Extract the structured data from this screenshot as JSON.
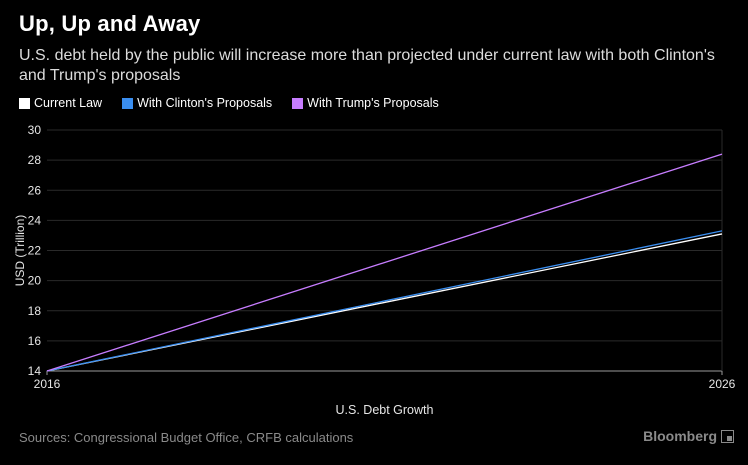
{
  "chart_data": {
    "type": "line",
    "title": "Up, Up and Away",
    "subtitle": "U.S. debt held by the public will increase more than projected under current law with both Clinton's and Trump's proposals",
    "xlabel": "U.S. Debt Growth",
    "ylabel": "USD (Trillion)",
    "x": [
      2016,
      2026
    ],
    "x_ticks": [
      "2016",
      "2026"
    ],
    "ylim": [
      14,
      30
    ],
    "y_ticks": [
      14,
      16,
      18,
      20,
      22,
      24,
      26,
      28,
      30
    ],
    "grid": true,
    "legend_position": "top-left",
    "series": [
      {
        "name": "Current Law",
        "color": "#ffffff",
        "values": [
          14.0,
          23.1
        ]
      },
      {
        "name": "With Clinton's Proposals",
        "color": "#3a8ef0",
        "values": [
          14.0,
          23.3
        ]
      },
      {
        "name": "With Trump's Proposals",
        "color": "#c77dff",
        "values": [
          14.0,
          28.4
        ]
      }
    ],
    "source": "Sources: Congressional Budget Office, CRFB calculations",
    "brand": "Bloomberg"
  }
}
